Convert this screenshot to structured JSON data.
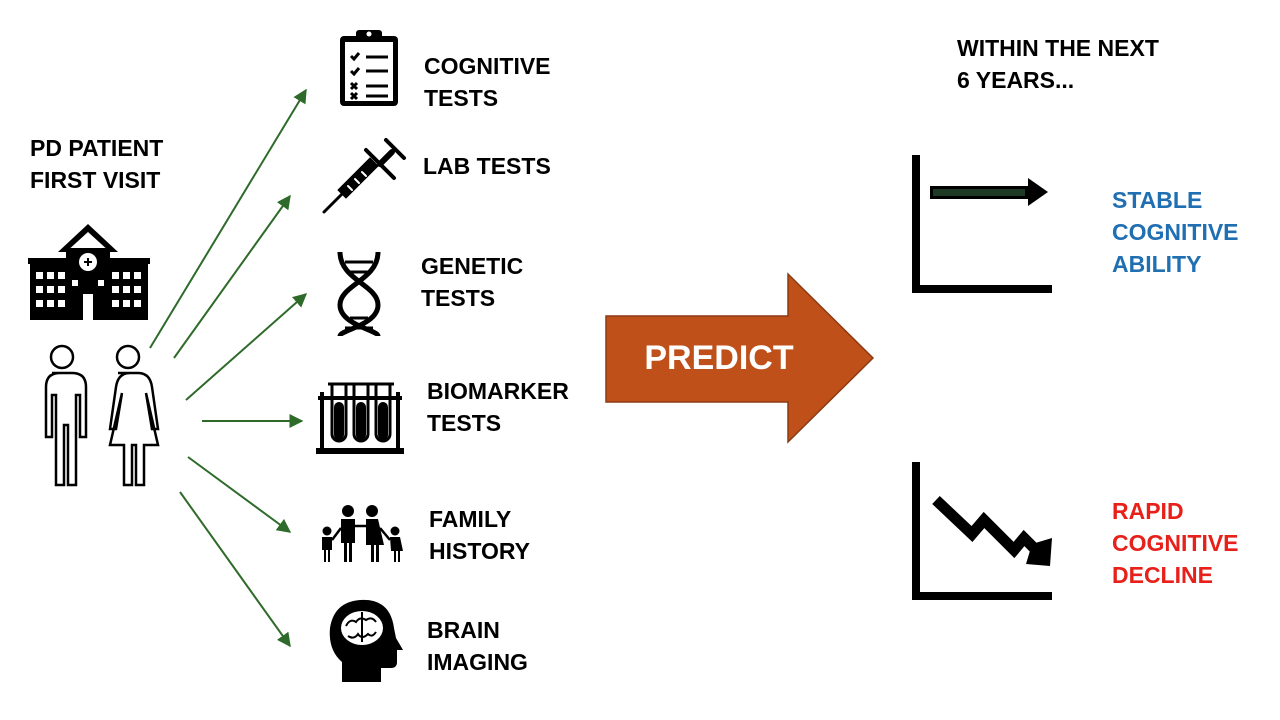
{
  "patient_label": [
    "PD PATIENT",
    "FIRST VISIT"
  ],
  "tests": [
    {
      "icon": "clipboard-icon",
      "lines": [
        "COGNITIVE",
        "TESTS"
      ]
    },
    {
      "icon": "syringe-icon",
      "lines": [
        "LAB TESTS"
      ]
    },
    {
      "icon": "dna-icon",
      "lines": [
        "GENETIC",
        "TESTS"
      ]
    },
    {
      "icon": "test-tubes-icon",
      "lines": [
        "BIOMARKER",
        "TESTS"
      ]
    },
    {
      "icon": "family-icon",
      "lines": [
        "FAMILY",
        "HISTORY"
      ]
    },
    {
      "icon": "brain-head-icon",
      "lines": [
        "BRAIN",
        "IMAGING"
      ]
    }
  ],
  "predict_label": "PREDICT",
  "timeframe": [
    "WITHIN THE NEXT",
    "6 YEARS..."
  ],
  "outcomes": [
    {
      "icon": "stable-trend-chart-icon",
      "lines": [
        "STABLE",
        "COGNITIVE",
        "ABILITY"
      ],
      "color": "#1F6FB2"
    },
    {
      "icon": "declining-trend-chart-icon",
      "lines": [
        "RAPID",
        "COGNITIVE",
        "DECLINE"
      ],
      "color": "#E8201A"
    }
  ],
  "colors": {
    "arrow_green": "#2E6B2A",
    "predict_orange": "#C0501A",
    "predict_border": "#8B3A12"
  }
}
